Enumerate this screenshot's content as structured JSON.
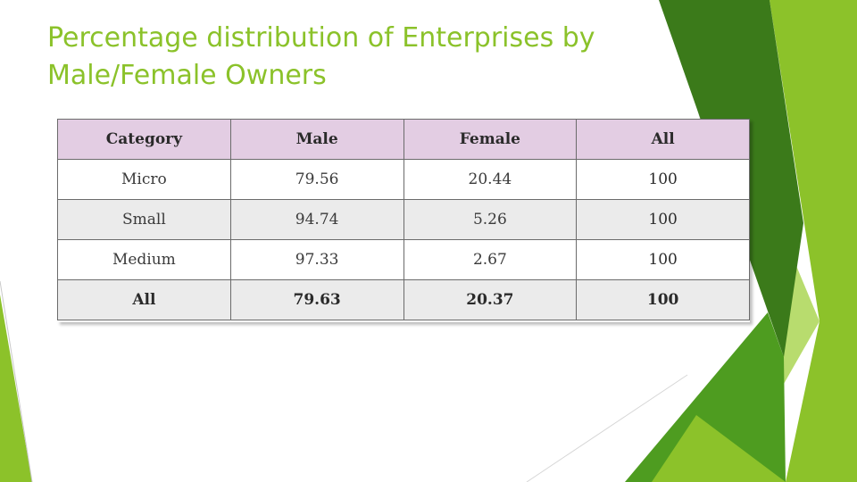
{
  "slide": {
    "title": "Percentage distribution of Enterprises by Male/Female Owners",
    "colors": {
      "title": "#8bc22a",
      "header_bg": "#e3cde3",
      "dark_green": "#3b7a1a",
      "mid_green": "#4e9c20",
      "light_green": "#8cc22a",
      "pale_green": "#b8dc6e"
    }
  },
  "table": {
    "headers": [
      "Category",
      "Male",
      "Female",
      "All"
    ],
    "rows": [
      [
        "Micro",
        "79.56",
        "20.44",
        "100"
      ],
      [
        "Small",
        "94.74",
        "5.26",
        "100"
      ],
      [
        "Medium",
        "97.33",
        "2.67",
        "100"
      ],
      [
        "All",
        "79.63",
        "20.37",
        "100"
      ]
    ]
  }
}
